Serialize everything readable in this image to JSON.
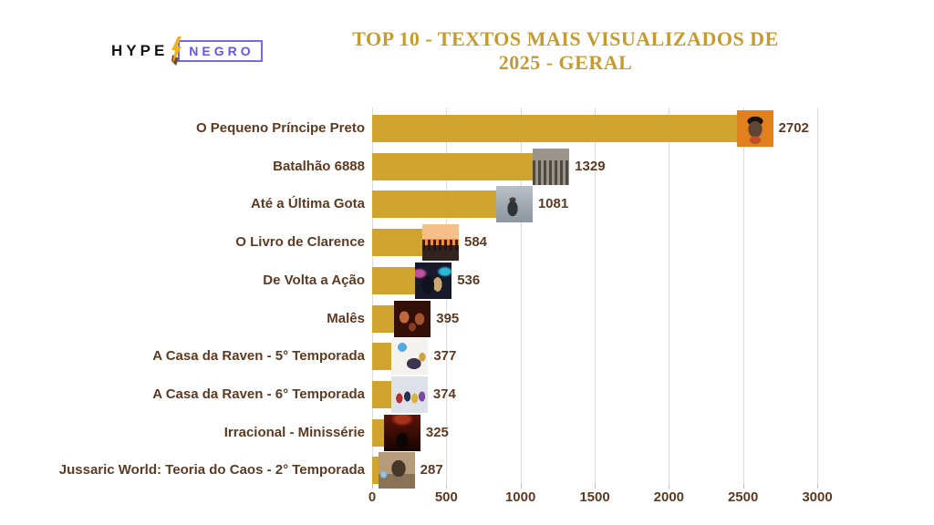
{
  "header": {
    "logo": {
      "hype": "HYPE",
      "negro": "NEGRO",
      "bolt_icon": "lightning-bolt-icon",
      "hype_color": "#111111",
      "negro_color": "#6456e8",
      "box_border_color": "#7668e0",
      "bolt_yellow": "#f2b21a",
      "bolt_brown": "#7a4a28"
    },
    "title_line1": "TOP 10 - TEXTOS MAIS VISUALIZADOS DE",
    "title_line2": "2025 - GERAL",
    "title_color": "#c49b32"
  },
  "colors": {
    "bar_gold": "#d0a42f",
    "text_brown": "#5d3b22",
    "grid_gray": "#dcdcdc",
    "background": "#ffffff"
  },
  "chart_data": {
    "type": "bar",
    "orientation": "horizontal",
    "title": "TOP 10 - TEXTOS MAIS VISUALIZADOS DE 2025 - GERAL",
    "xlabel": "",
    "ylabel": "",
    "xlim": [
      0,
      3000
    ],
    "xticks": [
      0,
      500,
      1000,
      1500,
      2000,
      2500,
      3000
    ],
    "grid": true,
    "legend": false,
    "categories": [
      "O Pequeno Príncipe Preto",
      "Batalhão 6888",
      "Até a Última Gota",
      "O Livro de Clarence",
      "De Volta a Ação",
      "Malês",
      "A Casa da Raven - 5° Temporada",
      "A Casa da Raven - 6° Temporada",
      "Irracional - Minissérie",
      "Jussaric World: Teoria do Caos - 2° Temporada"
    ],
    "values": [
      2702,
      1329,
      1081,
      584,
      536,
      395,
      377,
      374,
      325,
      287
    ],
    "rows": [
      {
        "label": "O Pequeno Príncipe Preto",
        "value": "2702",
        "thumb": "thumbnail-o-pequeno-principe-preto"
      },
      {
        "label": "Batalhão 6888",
        "value": "1329",
        "thumb": "thumbnail-batalhao-6888"
      },
      {
        "label": "Até a Última Gota",
        "value": "1081",
        "thumb": "thumbnail-ate-a-ultima-gota"
      },
      {
        "label": "O Livro de Clarence",
        "value": "584",
        "thumb": "thumbnail-o-livro-de-clarence"
      },
      {
        "label": "De Volta a Ação",
        "value": "536",
        "thumb": "thumbnail-de-volta-a-acao"
      },
      {
        "label": "Malês",
        "value": "395",
        "thumb": "thumbnail-males"
      },
      {
        "label": "A Casa da Raven - 5° Temporada",
        "value": "377",
        "thumb": "thumbnail-a-casa-da-raven-5-temporada"
      },
      {
        "label": "A Casa da Raven - 6° Temporada",
        "value": "374",
        "thumb": "thumbnail-a-casa-da-raven-6-temporada"
      },
      {
        "label": "Irracional - Minissérie",
        "value": "325",
        "thumb": "thumbnail-irracional-minisserie"
      },
      {
        "label": "Jussaric World: Teoria do Caos - 2° Temporada",
        "value": "287",
        "thumb": "thumbnail-jussaric-world-teoria-do-caos-2-temporada"
      }
    ]
  }
}
